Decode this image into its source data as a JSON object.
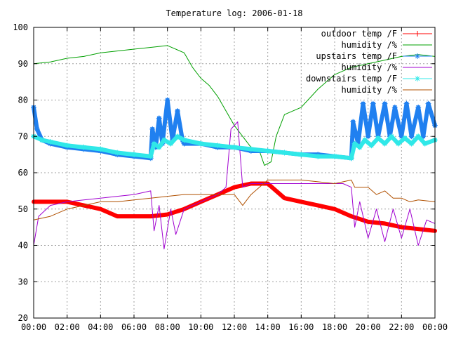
{
  "chart_data": {
    "type": "line",
    "title": "Temperature log: 2006-01-18",
    "xlabel": "",
    "ylabel": "",
    "xlim": [
      0,
      24
    ],
    "ylim": [
      20,
      100
    ],
    "grid": true,
    "legend_position": "top-right",
    "x_ticks": [
      "00:00",
      "02:00",
      "04:00",
      "06:00",
      "08:00",
      "10:00",
      "12:00",
      "14:00",
      "16:00",
      "18:00",
      "20:00",
      "22:00",
      "00:00"
    ],
    "y_ticks": [
      20,
      30,
      40,
      50,
      60,
      70,
      80,
      90,
      100
    ],
    "series": [
      {
        "name": "outdoor temp /F",
        "color": "#ff0000",
        "style": "thick-points",
        "points": [
          [
            0,
            52
          ],
          [
            1,
            52
          ],
          [
            2,
            52
          ],
          [
            3,
            51
          ],
          [
            4,
            50
          ],
          [
            5,
            48
          ],
          [
            6,
            48
          ],
          [
            7,
            48
          ],
          [
            8,
            48.5
          ],
          [
            9,
            50
          ],
          [
            10,
            52
          ],
          [
            11,
            54
          ],
          [
            12,
            56
          ],
          [
            13,
            57
          ],
          [
            14,
            57
          ],
          [
            15,
            53
          ],
          [
            16,
            52
          ],
          [
            17,
            51
          ],
          [
            18,
            50
          ],
          [
            19,
            48
          ],
          [
            20,
            46.5
          ],
          [
            21,
            46
          ],
          [
            22,
            45
          ],
          [
            23,
            44.5
          ],
          [
            24,
            44
          ]
        ]
      },
      {
        "name": "humidity /%",
        "color": "#00a000",
        "style": "line",
        "points": [
          [
            0,
            90
          ],
          [
            1,
            90.5
          ],
          [
            2,
            91.5
          ],
          [
            3,
            92
          ],
          [
            4,
            93
          ],
          [
            5,
            93.5
          ],
          [
            6,
            94
          ],
          [
            7,
            94.5
          ],
          [
            8,
            95
          ],
          [
            9,
            93
          ],
          [
            9.5,
            89
          ],
          [
            10,
            86
          ],
          [
            10.5,
            84
          ],
          [
            11,
            81
          ],
          [
            11.5,
            77
          ],
          [
            12,
            73
          ],
          [
            12.5,
            70
          ],
          [
            13,
            67
          ],
          [
            13.5,
            66
          ],
          [
            13.8,
            62
          ],
          [
            14.2,
            63
          ],
          [
            14.5,
            70
          ],
          [
            15,
            76
          ],
          [
            16,
            78
          ],
          [
            17,
            83
          ],
          [
            18,
            87
          ],
          [
            19,
            89
          ],
          [
            20,
            90
          ],
          [
            21,
            91
          ],
          [
            22,
            92
          ],
          [
            23,
            92.5
          ],
          [
            24,
            92
          ]
        ]
      },
      {
        "name": "upstairs temp /F",
        "color": "#2080f0",
        "style": "star-points",
        "points": [
          [
            0,
            78
          ],
          [
            0.2,
            72
          ],
          [
            0.5,
            69
          ],
          [
            1,
            68
          ],
          [
            2,
            67
          ],
          [
            3,
            66.5
          ],
          [
            4,
            66
          ],
          [
            5,
            65
          ],
          [
            6,
            64.5
          ],
          [
            7,
            64
          ],
          [
            7.1,
            72
          ],
          [
            7.3,
            67
          ],
          [
            7.5,
            75
          ],
          [
            7.7,
            68
          ],
          [
            8,
            80
          ],
          [
            8.3,
            69
          ],
          [
            8.6,
            77
          ],
          [
            8.9,
            69
          ],
          [
            9,
            68
          ],
          [
            10,
            68
          ],
          [
            11,
            67
          ],
          [
            12,
            67
          ],
          [
            13,
            66
          ],
          [
            14,
            66
          ],
          [
            15,
            65.5
          ],
          [
            16,
            65
          ],
          [
            17,
            65
          ],
          [
            18,
            64.5
          ],
          [
            19,
            64
          ],
          [
            19.1,
            74
          ],
          [
            19.4,
            68
          ],
          [
            19.7,
            79
          ],
          [
            20,
            70
          ],
          [
            20.3,
            79
          ],
          [
            20.6,
            70
          ],
          [
            21,
            79
          ],
          [
            21.3,
            70
          ],
          [
            21.6,
            78
          ],
          [
            22,
            70
          ],
          [
            22.3,
            79
          ],
          [
            22.6,
            70
          ],
          [
            23,
            78
          ],
          [
            23.3,
            70
          ],
          [
            23.6,
            79
          ],
          [
            24,
            73
          ]
        ]
      },
      {
        "name": "humidity /%",
        "color": "#a000d0",
        "style": "line",
        "points": [
          [
            0,
            40
          ],
          [
            0.3,
            48
          ],
          [
            1,
            51
          ],
          [
            2,
            52
          ],
          [
            3,
            52.5
          ],
          [
            4,
            53
          ],
          [
            5,
            53.5
          ],
          [
            6,
            54
          ],
          [
            7,
            55
          ],
          [
            7.2,
            44
          ],
          [
            7.5,
            51
          ],
          [
            7.8,
            39
          ],
          [
            8.2,
            50
          ],
          [
            8.5,
            43
          ],
          [
            9,
            50
          ],
          [
            10,
            52
          ],
          [
            11,
            54
          ],
          [
            11.5,
            56
          ],
          [
            11.8,
            72
          ],
          [
            12.2,
            74
          ],
          [
            12.5,
            56
          ],
          [
            13,
            57
          ],
          [
            14,
            57
          ],
          [
            15,
            57
          ],
          [
            16,
            57
          ],
          [
            17,
            57
          ],
          [
            18,
            57
          ],
          [
            18.5,
            57
          ],
          [
            19,
            56
          ],
          [
            19.2,
            45
          ],
          [
            19.5,
            52
          ],
          [
            20,
            42
          ],
          [
            20.5,
            50
          ],
          [
            21,
            41
          ],
          [
            21.5,
            50
          ],
          [
            22,
            42
          ],
          [
            22.5,
            50
          ],
          [
            23,
            40
          ],
          [
            23.5,
            47
          ],
          [
            24,
            46
          ]
        ]
      },
      {
        "name": "downstairs temp /F",
        "color": "#30e8e8",
        "style": "star-points",
        "points": [
          [
            0,
            70
          ],
          [
            0.5,
            69
          ],
          [
            1,
            68.5
          ],
          [
            2,
            67.5
          ],
          [
            3,
            67
          ],
          [
            4,
            66.5
          ],
          [
            5,
            65.5
          ],
          [
            6,
            65
          ],
          [
            7,
            64.5
          ],
          [
            7.2,
            68
          ],
          [
            7.5,
            67
          ],
          [
            7.8,
            69
          ],
          [
            8.2,
            68
          ],
          [
            8.6,
            70
          ],
          [
            9,
            69
          ],
          [
            10,
            68
          ],
          [
            11,
            67.5
          ],
          [
            12,
            67
          ],
          [
            13,
            66.5
          ],
          [
            14,
            66
          ],
          [
            15,
            65.5
          ],
          [
            16,
            65
          ],
          [
            17,
            64.5
          ],
          [
            18,
            64.5
          ],
          [
            19,
            64
          ],
          [
            19.2,
            68
          ],
          [
            19.5,
            67
          ],
          [
            19.8,
            69
          ],
          [
            20.2,
            67.5
          ],
          [
            20.6,
            69.5
          ],
          [
            21,
            68
          ],
          [
            21.4,
            70
          ],
          [
            21.8,
            68
          ],
          [
            22.2,
            69.5
          ],
          [
            22.6,
            68
          ],
          [
            23,
            70
          ],
          [
            23.4,
            68
          ],
          [
            24,
            69
          ]
        ]
      },
      {
        "name": "humidity /%",
        "color": "#b05000",
        "style": "line",
        "points": [
          [
            0,
            47
          ],
          [
            1,
            48
          ],
          [
            2,
            50
          ],
          [
            3,
            51
          ],
          [
            4,
            52
          ],
          [
            5,
            52
          ],
          [
            6,
            52.5
          ],
          [
            7,
            53
          ],
          [
            8,
            53.5
          ],
          [
            9,
            54
          ],
          [
            10,
            54
          ],
          [
            11,
            54
          ],
          [
            12,
            54
          ],
          [
            12.5,
            51
          ],
          [
            13,
            54
          ],
          [
            14,
            58
          ],
          [
            15,
            58
          ],
          [
            16,
            58
          ],
          [
            17,
            57.5
          ],
          [
            18,
            57
          ],
          [
            19,
            58
          ],
          [
            19.2,
            56
          ],
          [
            20,
            56
          ],
          [
            20.5,
            54
          ],
          [
            21,
            55
          ],
          [
            21.5,
            53
          ],
          [
            22,
            53
          ],
          [
            22.5,
            52
          ],
          [
            23,
            52.5
          ],
          [
            24,
            52
          ]
        ]
      }
    ]
  }
}
